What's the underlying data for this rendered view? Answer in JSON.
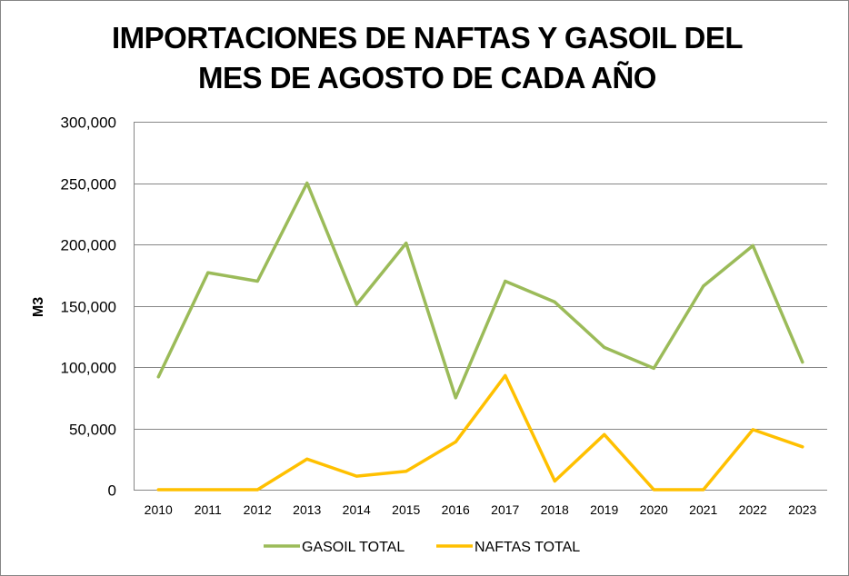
{
  "chart_data": {
    "type": "line",
    "title_lines": [
      "IMPORTACIONES DE NAFTAS Y GASOIL DEL",
      "MES DE AGOSTO DE CADA AÑO"
    ],
    "xlabel": "",
    "ylabel": "M3",
    "ylim": [
      0,
      300000
    ],
    "yticks": [
      0,
      50000,
      100000,
      150000,
      200000,
      250000,
      300000
    ],
    "ytick_labels": [
      "0",
      "50,000",
      "100,000",
      "150,000",
      "200,000",
      "250,000",
      "300,000"
    ],
    "categories": [
      "2010",
      "2011",
      "2012",
      "2013",
      "2014",
      "2015",
      "2016",
      "2017",
      "2018",
      "2019",
      "2020",
      "2021",
      "2022",
      "2023"
    ],
    "grid": true,
    "legend_position": "bottom",
    "series": [
      {
        "name": "GASOIL TOTAL",
        "color": "#9bbb59",
        "values": [
          92000,
          177000,
          170000,
          250000,
          151000,
          201000,
          75000,
          170000,
          153000,
          116000,
          99000,
          166000,
          199000,
          104000
        ]
      },
      {
        "name": "NAFTAS TOTAL",
        "color": "#ffc000",
        "values": [
          0,
          0,
          0,
          25000,
          11000,
          15000,
          39000,
          93000,
          7000,
          45000,
          0,
          0,
          49000,
          35000
        ]
      }
    ]
  }
}
